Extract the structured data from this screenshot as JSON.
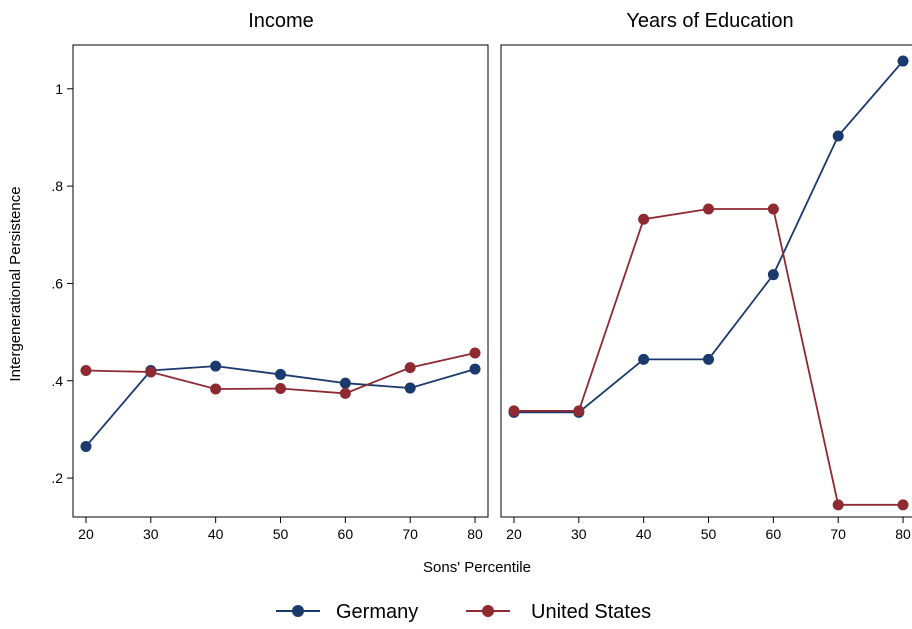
{
  "colors": {
    "germany": "#1a3a6e",
    "united_states": "#8f2a33",
    "axis": "#000000",
    "background": "#ffffff"
  },
  "chart_data": [
    {
      "type": "line",
      "title": "Income",
      "xlabel": "Sons' Percentile",
      "ylabel": "Intergenerational Persistence",
      "x": [
        20,
        30,
        40,
        50,
        60,
        70,
        80
      ],
      "xticks": [
        "20",
        "30",
        "40",
        "50",
        "60",
        "70",
        "80"
      ],
      "yticks": [
        ".2",
        ".4",
        ".6",
        ".8",
        "1"
      ],
      "ytick_values": [
        0.2,
        0.4,
        0.6,
        0.8,
        1.0
      ],
      "ylim": [
        0.12,
        1.09
      ],
      "xlim": [
        18,
        82
      ],
      "series": [
        {
          "name": "Germany",
          "color": "#1a3a6e",
          "values": [
            0.265,
            0.421,
            0.43,
            0.413,
            0.395,
            0.385,
            0.424
          ]
        },
        {
          "name": "United States",
          "color": "#8f2a33",
          "values": [
            0.421,
            0.418,
            0.383,
            0.384,
            0.374,
            0.427,
            0.457
          ]
        }
      ]
    },
    {
      "type": "line",
      "title": "Years of Education",
      "xlabel": "Sons' Percentile",
      "ylabel": "",
      "x": [
        20,
        30,
        40,
        50,
        60,
        70,
        80
      ],
      "xticks": [
        "20",
        "30",
        "40",
        "50",
        "60",
        "70",
        "80"
      ],
      "yticks": [],
      "ytick_values": [],
      "ylim": [
        0.12,
        1.09
      ],
      "xlim": [
        18,
        82
      ],
      "series": [
        {
          "name": "Germany",
          "color": "#1a3a6e",
          "values": [
            0.335,
            0.335,
            0.444,
            0.444,
            0.618,
            0.903,
            1.057
          ]
        },
        {
          "name": "United States",
          "color": "#8f2a33",
          "values": [
            0.338,
            0.338,
            0.732,
            0.753,
            0.753,
            0.145,
            0.145
          ]
        }
      ]
    }
  ],
  "legend": {
    "position": "bottom",
    "items": [
      {
        "label": "Germany",
        "color": "#1a3a6e"
      },
      {
        "label": "United States",
        "color": "#8f2a33"
      }
    ]
  }
}
